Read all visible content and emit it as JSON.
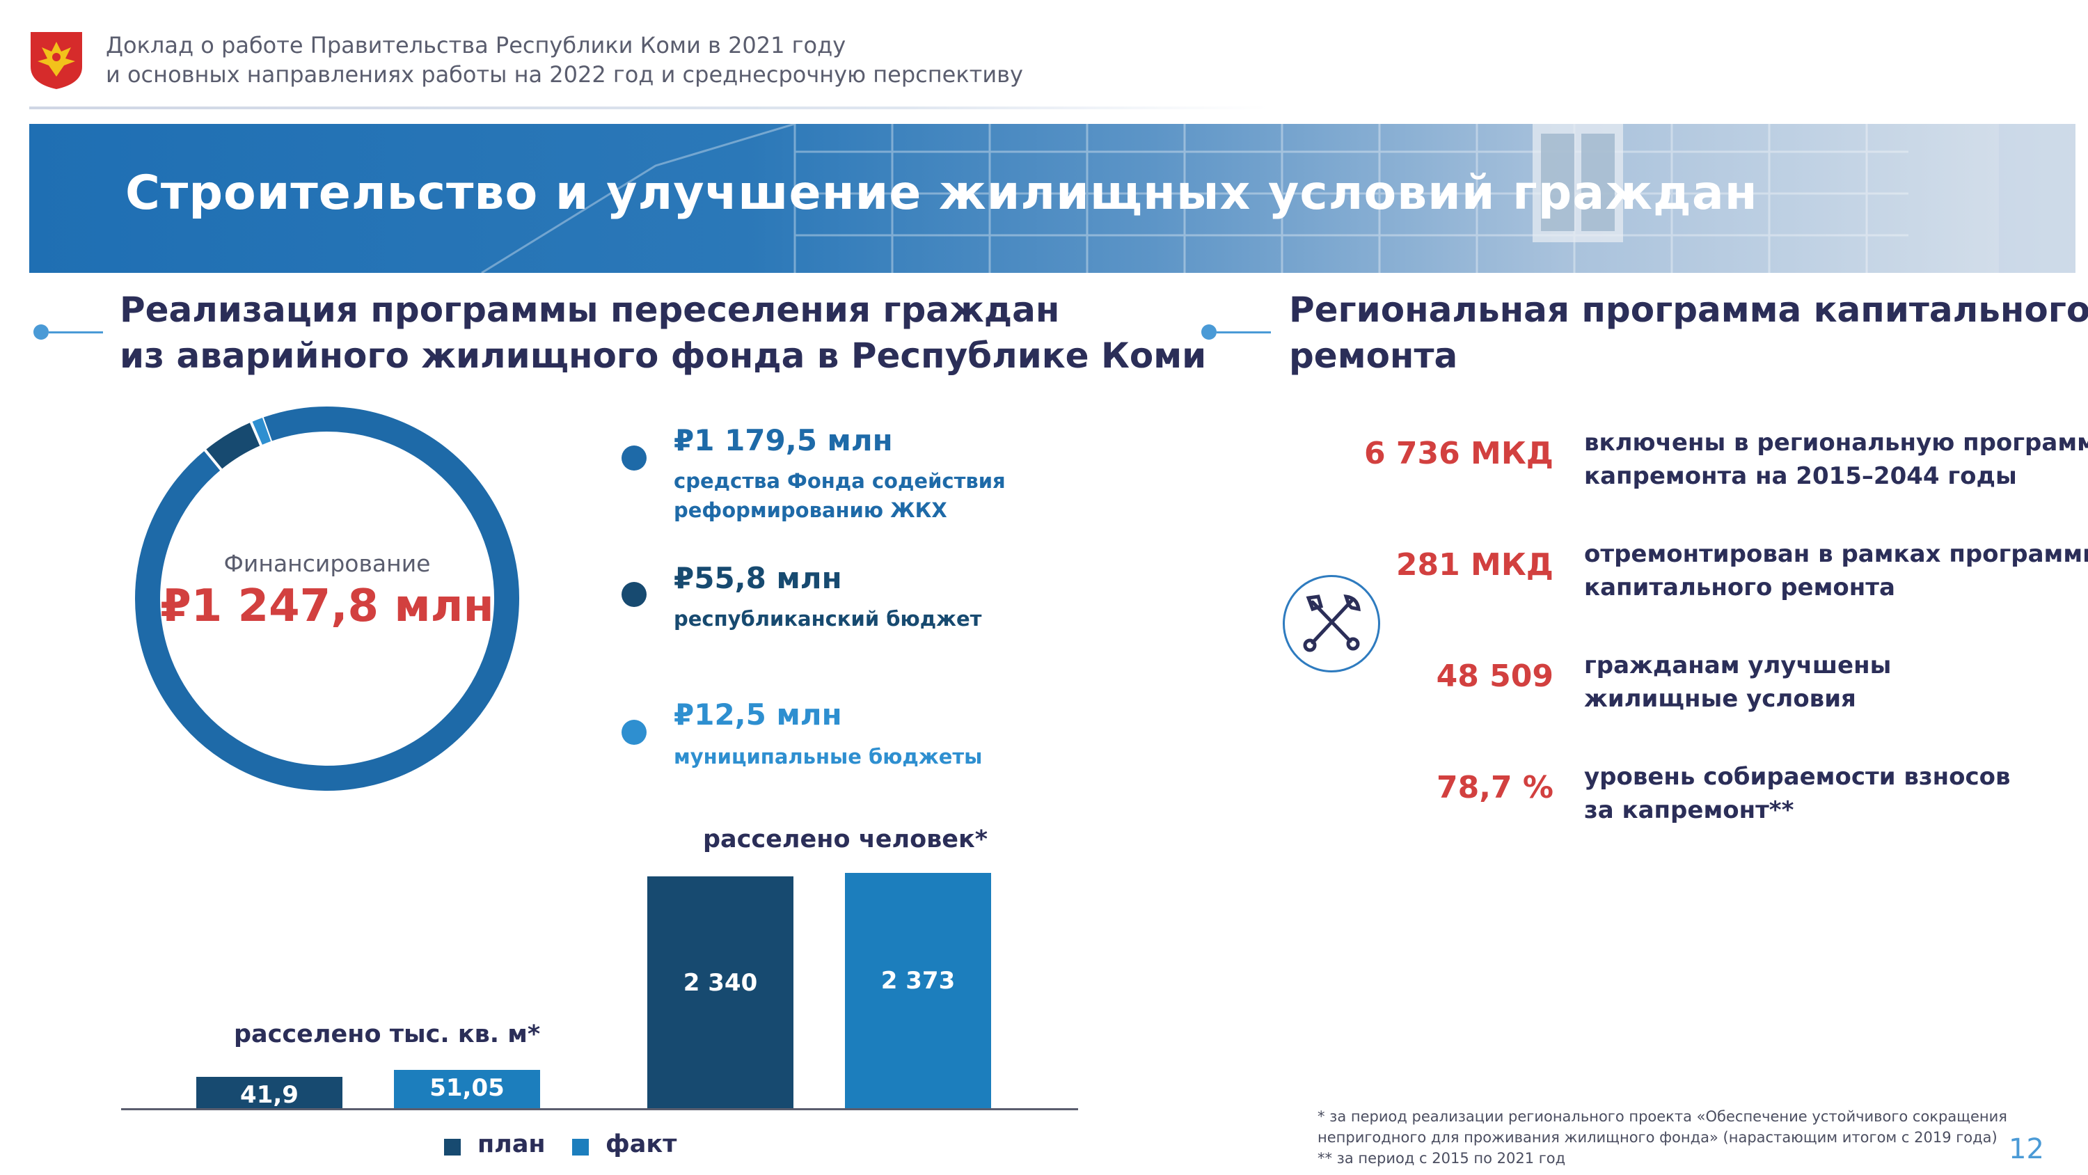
{
  "header": {
    "line1": "Доклад о работе Правительства Республики Коми в 2021 году",
    "line2": "и основных направлениях работы на 2022 год и среднесрочную перспективу"
  },
  "banner": {
    "title": "Строительство и улучшение жилищных условий граждан"
  },
  "left_section": {
    "title_line1": "Реализация программы переселения граждан",
    "title_line2": "из аварийного жилищного фонда в Республике Коми"
  },
  "right_section": {
    "title_line1": "Региональная программа капитального",
    "title_line2": "ремонта"
  },
  "donut": {
    "caption": "Финансирование",
    "total": "₽1 247,8 млн"
  },
  "funding": [
    {
      "value": "₽1 179,5 млн",
      "label_line1": "средства Фонда содействия",
      "label_line2": "реформированию ЖКХ",
      "color": "#1e6aa8"
    },
    {
      "value": "₽55,8 млн",
      "label_line1": "республиканский бюджет",
      "label_line2": "",
      "color": "#174a70"
    },
    {
      "value": "₽12,5 млн",
      "label_line1": "муниципальные бюджеты",
      "label_line2": "",
      "color": "#2e8fd0"
    }
  ],
  "chart_data": [
    {
      "type": "pie",
      "title": "Финансирование",
      "total_label": "₽1 247,8 млн",
      "categories": [
        "средства Фонда содействия реформированию ЖКХ",
        "республиканский бюджет",
        "муниципальные бюджеты"
      ],
      "values": [
        1179.5,
        55.8,
        12.5
      ],
      "colors": [
        "#1e6aa8",
        "#174a70",
        "#2e8fd0"
      ]
    },
    {
      "type": "bar",
      "title": "расселено тыс. кв. м*",
      "categories": [
        "план",
        "факт"
      ],
      "values": [
        41.9,
        51.05
      ],
      "value_labels": [
        "41,9",
        "51,05"
      ],
      "colors": [
        "#174a70",
        "#1c7ebd"
      ]
    },
    {
      "type": "bar",
      "title": "расселено человек*",
      "categories": [
        "план",
        "факт"
      ],
      "values": [
        2340,
        2373
      ],
      "value_labels": [
        "2 340",
        "2 373"
      ],
      "colors": [
        "#174a70",
        "#1c7ebd"
      ]
    }
  ],
  "bar_legend": {
    "plan": "план",
    "fact": "факт"
  },
  "stats": [
    {
      "value": "6 736 МКД",
      "line1": "включены в региональную программу",
      "line2": "капремонта на 2015–2044 годы"
    },
    {
      "value": "281 МКД",
      "line1": "отремонтирован в рамках программы",
      "line2": "капитального ремонта"
    },
    {
      "value": "48 509",
      "line1": "гражданам улучшены",
      "line2": "жилищные условия"
    },
    {
      "value": "78,7 %",
      "line1": "уровень собираемости взносов",
      "line2": "за капремонт**"
    }
  ],
  "footnotes": {
    "line1": "* за период реализации регионального проекта «Обеспечение устойчивого сокращения",
    "line2": "непригодного для проживания жилищного фонда» (нарастающим итогом с 2019 года)",
    "line3": "** за период с 2015 по 2021 год"
  },
  "page_number": "12"
}
